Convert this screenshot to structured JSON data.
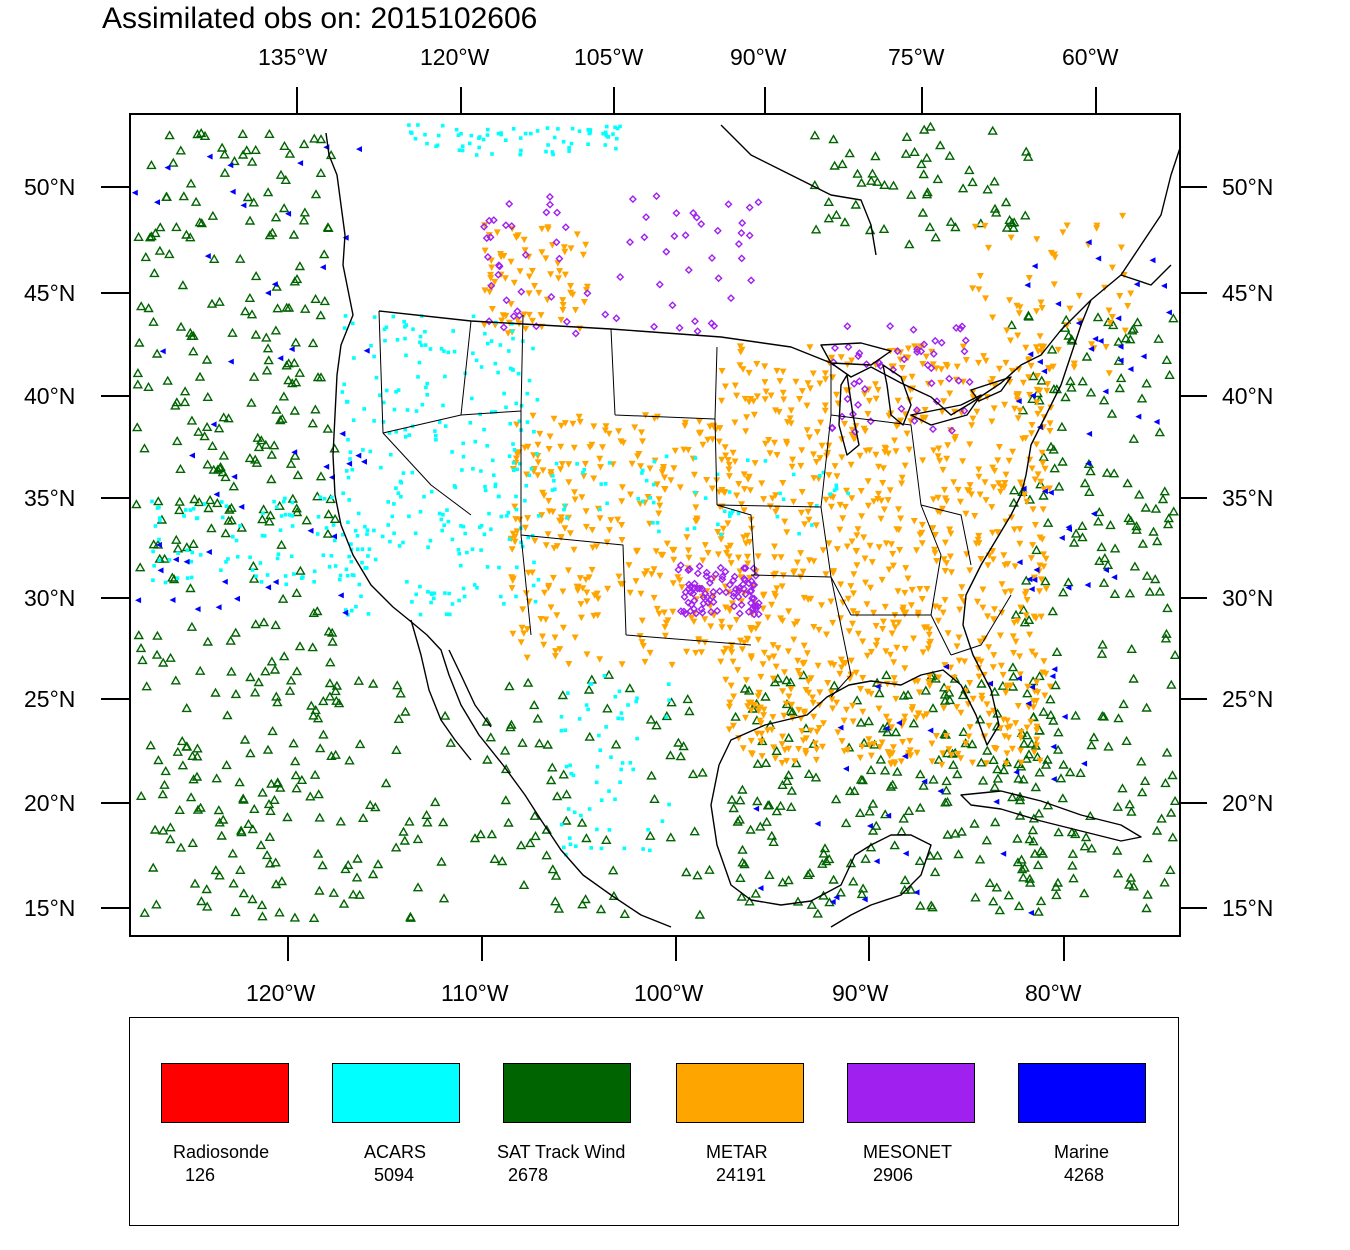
{
  "title": "Assimilated obs on: 2015102606",
  "top_axis_labels": [
    "135°W",
    "120°W",
    "105°W",
    "90°W",
    "75°W",
    "60°W"
  ],
  "bottom_axis_labels": [
    "120°W",
    "110°W",
    "100°W",
    "90°W",
    "80°W"
  ],
  "left_axis_labels": [
    "50°N",
    "45°N",
    "40°N",
    "35°N",
    "30°N",
    "25°N",
    "20°N",
    "15°N"
  ],
  "right_axis_labels": [
    "50°N",
    "45°N",
    "40°N",
    "35°N",
    "30°N",
    "25°N",
    "20°N",
    "15°N"
  ],
  "colors": {
    "radiosonde": "#ff0000",
    "acars": "#00ffff",
    "sat_track_wind": "#006400",
    "metar": "#ffa500",
    "mesonet": "#a020f0",
    "marine": "#0000ff",
    "map_lines": "#000000"
  },
  "legend": {
    "items": [
      {
        "name": "Radiosonde",
        "count": "126",
        "color": "#ff0000"
      },
      {
        "name": "ACARS",
        "count": "5094",
        "color": "#00ffff"
      },
      {
        "name": "SAT Track Wind",
        "count": "2678",
        "color": "#006400"
      },
      {
        "name": "METAR",
        "count": "24191",
        "color": "#ffa500"
      },
      {
        "name": "MESONET",
        "count": "2906",
        "color": "#a020f0"
      },
      {
        "name": "Marine",
        "count": "4268",
        "color": "#0000ff"
      }
    ]
  }
}
